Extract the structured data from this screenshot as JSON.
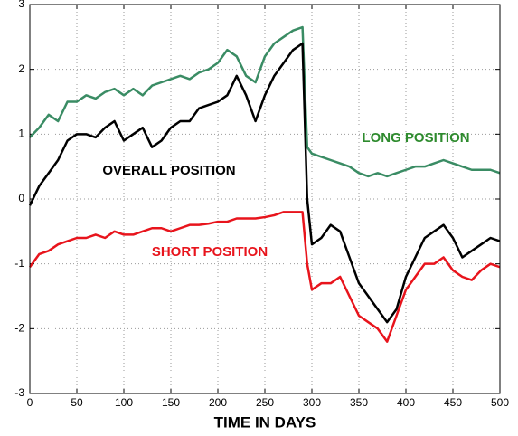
{
  "chart_data": {
    "type": "line",
    "xlabel": "TIME IN DAYS",
    "x": [
      0,
      10,
      20,
      30,
      40,
      50,
      60,
      70,
      80,
      90,
      100,
      110,
      120,
      130,
      140,
      150,
      160,
      170,
      180,
      190,
      200,
      210,
      220,
      230,
      240,
      250,
      260,
      270,
      280,
      290,
      295,
      300,
      310,
      320,
      330,
      340,
      350,
      360,
      370,
      380,
      390,
      400,
      410,
      420,
      430,
      440,
      450,
      460,
      470,
      480,
      490,
      500
    ],
    "series": [
      {
        "color": "#3a8c64",
        "values": [
          0.95,
          1.1,
          1.3,
          1.2,
          1.5,
          1.5,
          1.6,
          1.55,
          1.65,
          1.7,
          1.6,
          1.7,
          1.6,
          1.75,
          1.8,
          1.85,
          1.9,
          1.85,
          1.95,
          2.0,
          2.1,
          2.3,
          2.2,
          1.9,
          1.8,
          2.2,
          2.4,
          2.5,
          2.6,
          2.65,
          0.8,
          0.7,
          0.65,
          0.6,
          0.55,
          0.5,
          0.4,
          0.35,
          0.4,
          0.35,
          0.4,
          0.45,
          0.5,
          0.5,
          0.55,
          0.6,
          0.55,
          0.5,
          0.45,
          0.45,
          0.45,
          0.4
        ]
      },
      {
        "color": "#000000",
        "values": [
          -0.1,
          0.2,
          0.4,
          0.6,
          0.9,
          1.0,
          1.0,
          0.95,
          1.1,
          1.2,
          0.9,
          1.0,
          1.1,
          0.8,
          0.9,
          1.1,
          1.2,
          1.2,
          1.4,
          1.45,
          1.5,
          1.6,
          1.9,
          1.6,
          1.2,
          1.6,
          1.9,
          2.1,
          2.3,
          2.4,
          0.0,
          -0.7,
          -0.6,
          -0.4,
          -0.5,
          -0.9,
          -1.3,
          -1.5,
          -1.7,
          -1.9,
          -1.7,
          -1.2,
          -0.9,
          -0.6,
          -0.5,
          -0.4,
          -0.6,
          -0.9,
          -0.8,
          -0.7,
          -0.6,
          -0.65
        ]
      },
      {
        "color": "#e8141c",
        "values": [
          -1.05,
          -0.85,
          -0.8,
          -0.7,
          -0.65,
          -0.6,
          -0.6,
          -0.55,
          -0.6,
          -0.5,
          -0.55,
          -0.55,
          -0.5,
          -0.45,
          -0.45,
          -0.5,
          -0.45,
          -0.4,
          -0.4,
          -0.38,
          -0.35,
          -0.35,
          -0.3,
          -0.3,
          -0.3,
          -0.28,
          -0.25,
          -0.2,
          -0.2,
          -0.2,
          -1.0,
          -1.4,
          -1.3,
          -1.3,
          -1.2,
          -1.5,
          -1.8,
          -1.9,
          -2.0,
          -2.2,
          -1.8,
          -1.4,
          -1.2,
          -1.0,
          -1.0,
          -0.9,
          -1.1,
          -1.2,
          -1.25,
          -1.1,
          -1.0,
          -1.05
        ]
      }
    ],
    "annotations": [
      {
        "text": "LONG POSITION",
        "color": "#2e8b2e"
      },
      {
        "text": "OVERALL POSITION",
        "color": "#000000"
      },
      {
        "text": "SHORT POSITION",
        "color": "#e8141c"
      }
    ],
    "xlim": [
      0,
      500
    ],
    "ylim": [
      -3,
      3
    ],
    "xticks": [
      0,
      50,
      100,
      150,
      200,
      250,
      300,
      350,
      400,
      450,
      500
    ],
    "yticks": [
      -3,
      -2,
      -1,
      0,
      1,
      2,
      3
    ],
    "grid": true
  }
}
